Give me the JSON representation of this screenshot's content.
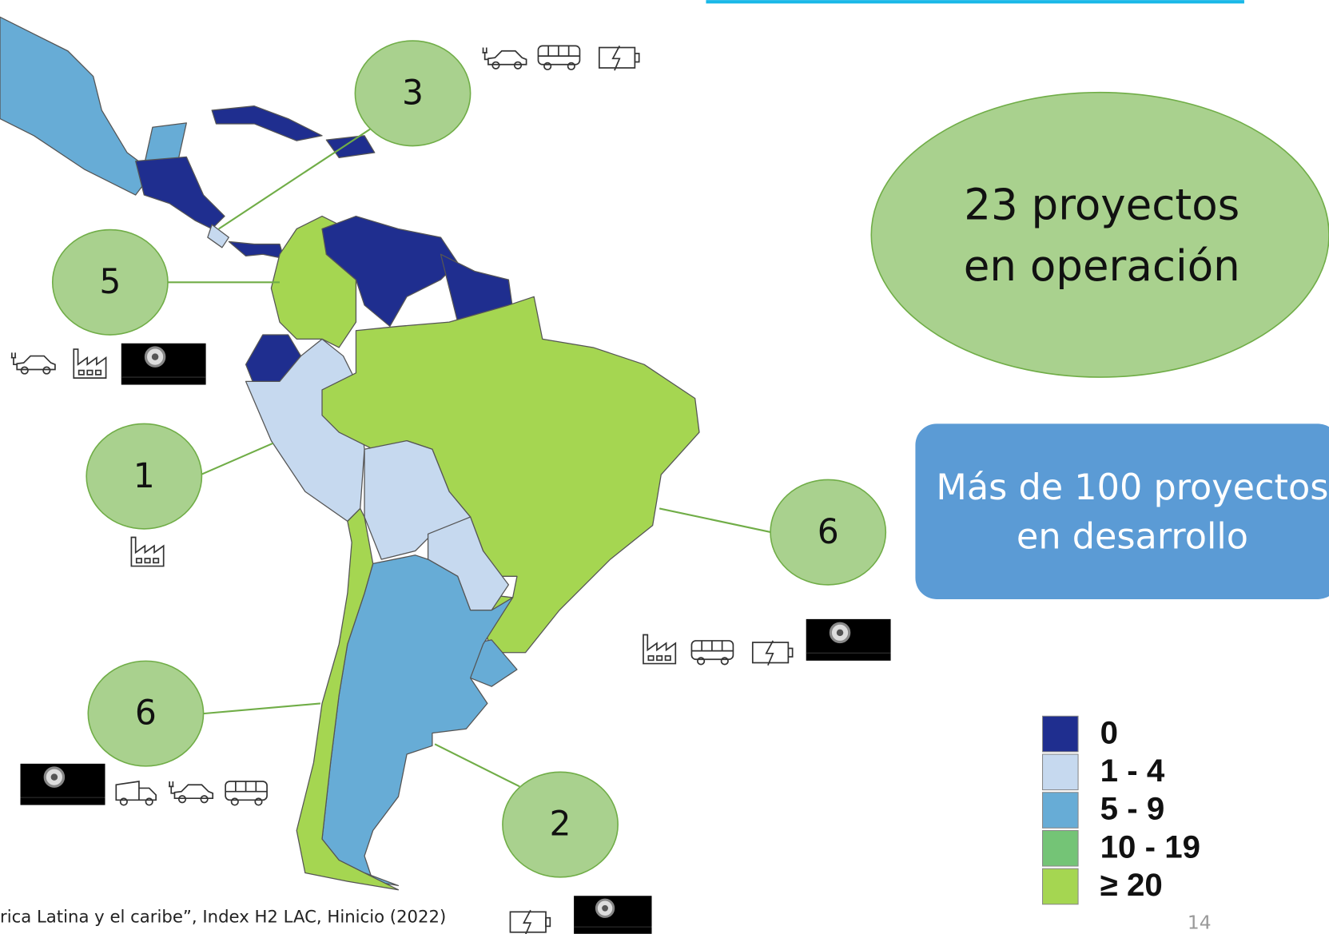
{
  "slide": {
    "summary": {
      "operating": [
        "23 proyectos",
        "en operación"
      ],
      "developing": [
        "Más de 100 proyectos",
        "en desarrollo"
      ]
    },
    "bubbles": [
      "3",
      "5",
      "1",
      "6",
      "6",
      "2"
    ],
    "legend": [
      {
        "label": "0",
        "color": "#1f2e8f"
      },
      {
        "label": "1 - 4",
        "color": "#c6d9ef"
      },
      {
        "label": "5 - 9",
        "color": "#67acd6"
      },
      {
        "label": "10 - 19",
        "color": "#74c476"
      },
      {
        "label": "≥ 20",
        "color": "#a5d651"
      }
    ],
    "source": "rica Latina y el caribe”, Index H2 LAC, Hinicio (2022)",
    "page_number": "14"
  }
}
